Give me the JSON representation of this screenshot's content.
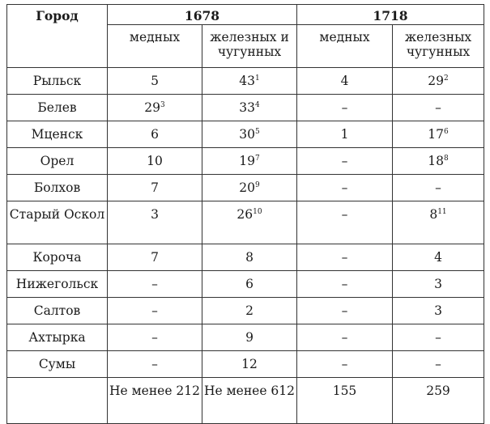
{
  "table": {
    "col_city": "Город",
    "year_1678": "1678",
    "year_1718": "1718",
    "sub_1678_copper": "медных",
    "sub_1678_iron": "железных и чугунных",
    "sub_1718_copper": "медных",
    "sub_1718_iron": "железных чугунных",
    "rows": [
      {
        "city": "Рыльск",
        "c1678": "5",
        "i1678": "43",
        "i1678_note": "1",
        "c1718": "4",
        "i1718": "29",
        "i1718_note": "2"
      },
      {
        "city": "Белев",
        "c1678": "29",
        "c1678_note": "3",
        "i1678": "33",
        "i1678_note": "4",
        "c1718": "–",
        "i1718": "–"
      },
      {
        "city": "Мценск",
        "c1678": "6",
        "i1678": "30",
        "i1678_note": "5",
        "c1718": "1",
        "i1718": "17",
        "i1718_note": "6"
      },
      {
        "city": "Орел",
        "c1678": "10",
        "i1678": "19",
        "i1678_note": "7",
        "c1718": "–",
        "i1718": "18",
        "i1718_note": "8"
      },
      {
        "city": "Болхов",
        "c1678": "7",
        "i1678": "20",
        "i1678_note": "9",
        "c1718": "–",
        "i1718": "–"
      },
      {
        "city": "Старый Оскол",
        "c1678": "3",
        "i1678": "26",
        "i1678_note": "10",
        "c1718": "–",
        "i1718": "8",
        "i1718_note": "11"
      },
      {
        "city": "Короча",
        "c1678": "7",
        "i1678": "8",
        "c1718": "–",
        "i1718": "4"
      },
      {
        "city": "Нижегольск",
        "c1678": "–",
        "i1678": "6",
        "c1718": "–",
        "i1718": "3"
      },
      {
        "city": "Салтов",
        "c1678": "–",
        "i1678": "2",
        "c1718": "–",
        "i1718": "3"
      },
      {
        "city": "Ахтырка",
        "c1678": "–",
        "i1678": "9",
        "c1718": "–",
        "i1718": "–"
      },
      {
        "city": "Сумы",
        "c1678": "–",
        "i1678": "12",
        "c1718": "–",
        "i1718": "–"
      }
    ],
    "totals": {
      "city": "",
      "c1678": "Не менее 212",
      "i1678": "Не менее 612",
      "c1718": "155",
      "i1718": "259"
    }
  }
}
